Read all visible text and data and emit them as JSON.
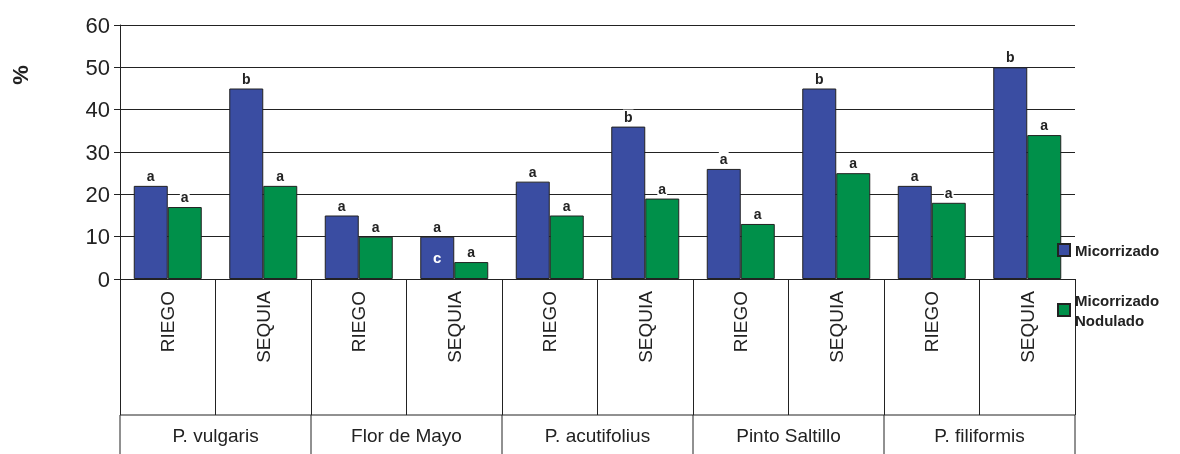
{
  "chart_data": {
    "type": "bar",
    "ylabel": "%",
    "categories": [
      "RIEGO",
      "SEQUIA",
      "RIEGO",
      "SEQUIA",
      "RIEGO",
      "SEQUIA",
      "RIEGO",
      "SEQUIA",
      "RIEGO",
      "SEQUIA"
    ],
    "series": [
      {
        "name": "Micorrizado",
        "color": "#3a4da2",
        "values": [
          22,
          45,
          15,
          10,
          23,
          36,
          26,
          45,
          22,
          50
        ],
        "value_labels": [
          "a",
          "b",
          "a",
          "a",
          "a",
          "b",
          "a",
          "b",
          "a",
          "b"
        ]
      },
      {
        "name": "Micorrizado Nodulado",
        "color": "#00904a",
        "values": [
          17,
          22,
          10,
          4,
          15,
          19,
          13,
          25,
          18,
          34
        ],
        "value_labels": [
          "a",
          "a",
          "a",
          "a",
          "a",
          "a",
          "a",
          "a",
          "a",
          "a"
        ]
      }
    ],
    "ylim": [
      0,
      60
    ],
    "yticks": [
      0,
      10,
      20,
      30,
      40,
      50,
      60
    ],
    "grid": "y",
    "legend": "right",
    "annotations": [
      "P. vulgaris",
      "Flor de Mayo",
      "P. acutifolius",
      "Pinto Saltillo",
      "P. filiformis",
      "c"
    ]
  }
}
